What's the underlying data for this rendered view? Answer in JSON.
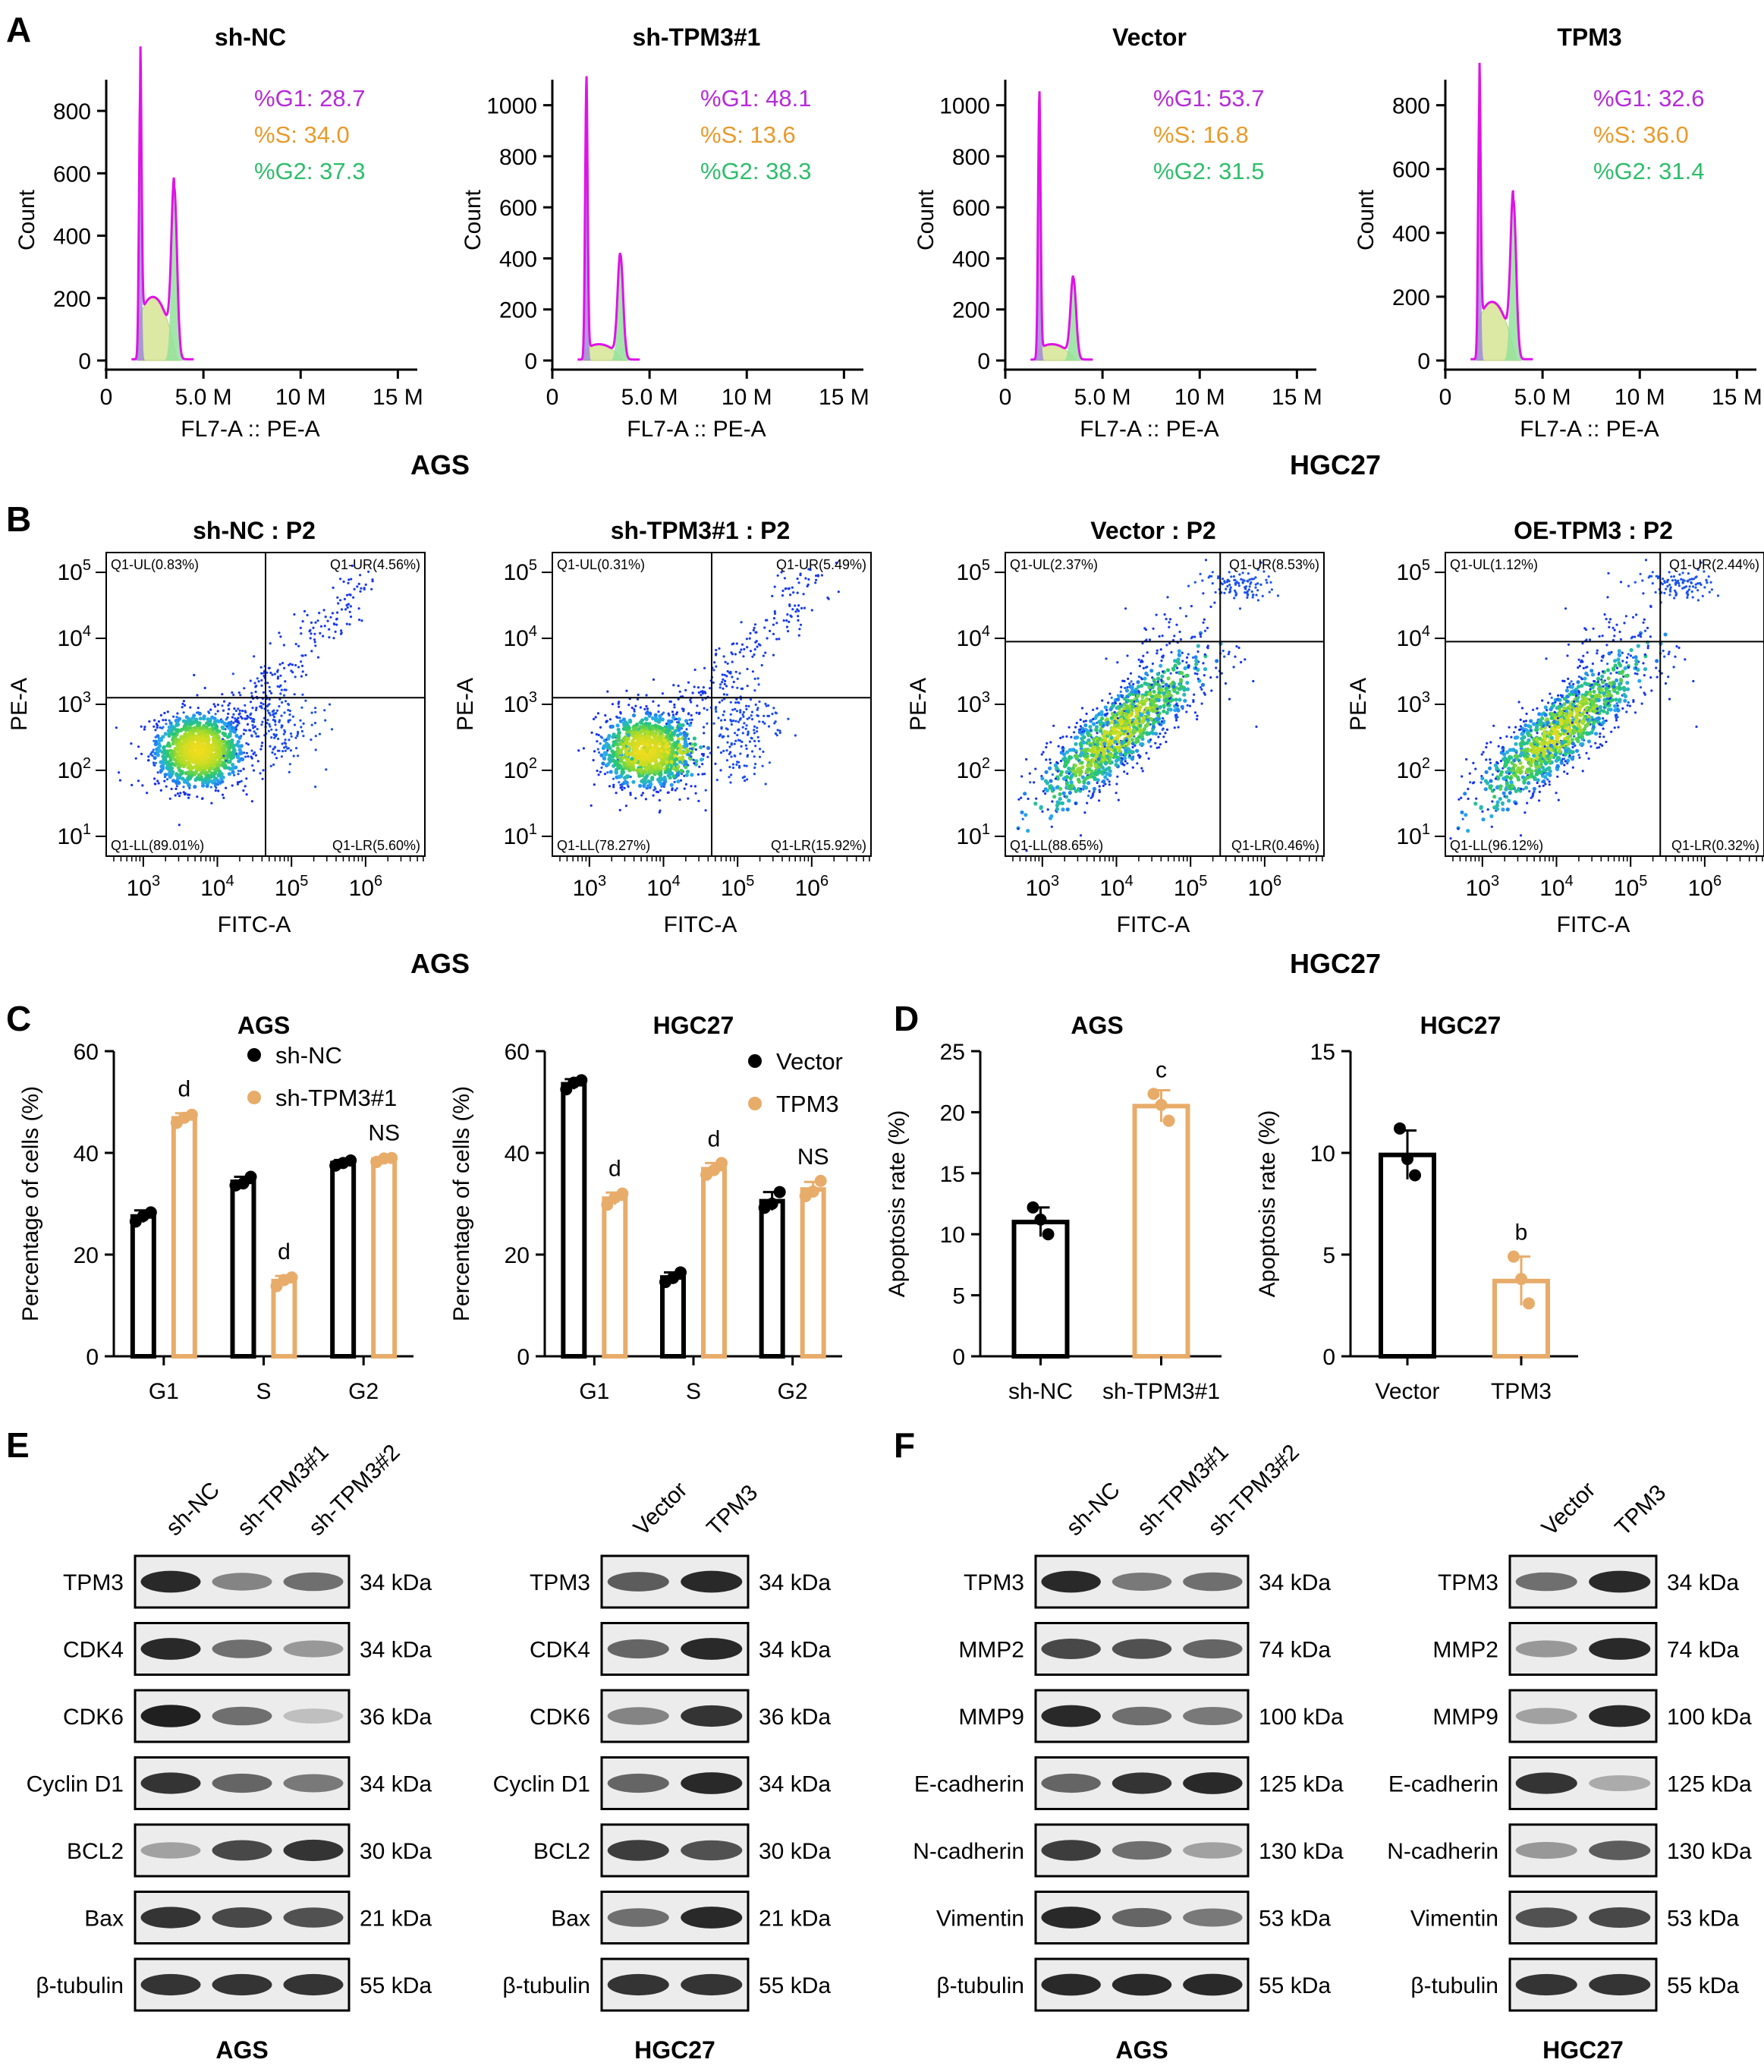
{
  "panel_letters": [
    "A",
    "B",
    "C",
    "D",
    "E",
    "F"
  ],
  "panel_a": {
    "plots": [
      {
        "title": "sh-NC",
        "yticks": [
          "0",
          "200",
          "400",
          "600",
          "800"
        ],
        "ymax": 900,
        "g1": "%G1: 28.7",
        "s": "%S: 34.0",
        "g2": "%G2: 37.3",
        "peak1": 870,
        "peak2": 550,
        "shoulder": 200
      },
      {
        "title": "sh-TPM3#1",
        "yticks": [
          "0",
          "200",
          "400",
          "600",
          "800",
          "1000"
        ],
        "ymax": 1100,
        "g1": "%G1: 48.1",
        "s": "%S: 13.6",
        "g2": "%G2: 38.3",
        "peak1": 1080,
        "peak2": 410,
        "shoulder": 60
      },
      {
        "title": "Vector",
        "yticks": [
          "0",
          "200",
          "400",
          "600",
          "800",
          "1000"
        ],
        "ymax": 1100,
        "g1": "%G1: 53.7",
        "s": "%S: 16.8",
        "g2": "%G2: 31.5",
        "peak1": 1020,
        "peak2": 320,
        "shoulder": 60
      },
      {
        "title": "TPM3",
        "yticks": [
          "0",
          "200",
          "400",
          "600",
          "800"
        ],
        "ymax": 880,
        "g1": "%G1: 32.6",
        "s": "%S: 36.0",
        "g2": "%G2: 31.4",
        "peak1": 810,
        "peak2": 500,
        "shoulder": 180
      }
    ],
    "xticks": [
      "0",
      "5.0 M",
      "10 M",
      "15 M"
    ],
    "xlabel": "FL7-A :: PE-A",
    "ylabel": "Count",
    "group_labels": [
      "AGS",
      "HGC27"
    ]
  },
  "panel_b": {
    "plots": [
      {
        "title": "sh-NC : P2",
        "ul": "Q1-UL(0.83%)",
        "ur": "Q1-UR(4.56%)",
        "ll": "Q1-LL(89.01%)",
        "lr": "Q1-LR(5.60%)",
        "gate_x": 4.65,
        "gate_y": 3.1,
        "style": "ags"
      },
      {
        "title": "sh-TPM3#1 : P2",
        "ul": "Q1-UL(0.31%)",
        "ur": "Q1-UR(5.49%)",
        "ll": "Q1-LL(78.27%)",
        "lr": "Q1-LR(15.92%)",
        "gate_x": 4.65,
        "gate_y": 3.1,
        "style": "ags2"
      },
      {
        "title": "Vector : P2",
        "ul": "Q1-UL(2.37%)",
        "ur": "Q1-UR(8.53%)",
        "ll": "Q1-LL(88.65%)",
        "lr": "Q1-LR(0.46%)",
        "gate_x": 5.4,
        "gate_y": 3.95,
        "style": "hgc"
      },
      {
        "title": "OE-TPM3 : P2",
        "ul": "Q1-UL(1.12%)",
        "ur": "Q1-UR(2.44%)",
        "ll": "Q1-LL(96.12%)",
        "lr": "Q1-LR(0.32%)",
        "gate_x": 5.4,
        "gate_y": 3.95,
        "style": "hgc2"
      }
    ],
    "xlabel": "FITC-A",
    "ylabel": "PE-A",
    "group_labels": [
      "AGS",
      "HGC27"
    ]
  },
  "chart_data": [
    {
      "type": "bar",
      "title": "AGS",
      "categories": [
        "G1",
        "S",
        "G2"
      ],
      "ylabel": "Percentage of cells (%)",
      "ylim": [
        0,
        60
      ],
      "yticks": [
        "0",
        "20",
        "40",
        "60"
      ],
      "series": [
        {
          "name": "sh-NC",
          "values": [
            27.5,
            34.3,
            38.0
          ],
          "error": [
            1.2,
            1.0,
            0.6
          ],
          "points": [
            [
              26.5,
              28.3,
              27.6
            ],
            [
              33.6,
              35.3,
              34.0
            ],
            [
              37.5,
              38.5,
              38.0
            ]
          ]
        },
        {
          "name": "sh-TPM3#1",
          "values": [
            46.8,
            14.8,
            38.7
          ],
          "error": [
            1.0,
            1.0,
            0.5
          ],
          "points": [
            [
              45.9,
              47.5,
              46.9
            ],
            [
              13.8,
              15.5,
              15.0
            ],
            [
              38.2,
              39.0,
              38.9
            ]
          ]
        }
      ],
      "annotations": [
        "d",
        "d",
        "NS"
      ],
      "colors": [
        "#000000",
        "#e8ac6a"
      ]
    },
    {
      "type": "bar",
      "title": "HGC27",
      "categories": [
        "G1",
        "S",
        "G2"
      ],
      "ylabel": "Percentage of cells (%)",
      "ylim": [
        0,
        60
      ],
      "yticks": [
        "0",
        "20",
        "40",
        "60"
      ],
      "series": [
        {
          "name": "Vector",
          "values": [
            53.5,
            15.5,
            30.5
          ],
          "error": [
            1.0,
            1.0,
            1.8
          ],
          "points": [
            [
              52.5,
              54.3,
              53.8
            ],
            [
              14.6,
              16.5,
              15.4
            ],
            [
              29.2,
              32.3,
              30.0
            ]
          ]
        },
        {
          "name": "TPM3",
          "values": [
            31.0,
            36.8,
            32.8
          ],
          "error": [
            1.2,
            1.2,
            1.5
          ],
          "points": [
            [
              29.8,
              32.0,
              31.2
            ],
            [
              35.7,
              38.0,
              36.6
            ],
            [
              31.5,
              34.5,
              32.4
            ]
          ]
        }
      ],
      "annotations": [
        "d",
        "d",
        "NS"
      ],
      "colors": [
        "#000000",
        "#e8ac6a"
      ]
    },
    {
      "type": "bar",
      "title": "AGS",
      "categories": [
        "sh-NC",
        "sh-TPM3#1"
      ],
      "ylabel": "Apoptosis rate (%)",
      "ylim": [
        0,
        25
      ],
      "yticks": [
        "0",
        "5",
        "10",
        "15",
        "20",
        "25"
      ],
      "values": [
        11.0,
        20.5
      ],
      "error": [
        1.2,
        1.3
      ],
      "points": [
        [
          12.2,
          10.0,
          11.2
        ],
        [
          21.5,
          19.3,
          20.6
        ]
      ],
      "annotations": [
        "",
        "c"
      ],
      "colors": [
        "#000000",
        "#e8ac6a"
      ]
    },
    {
      "type": "bar",
      "title": "HGC27",
      "categories": [
        "Vector",
        "TPM3"
      ],
      "ylabel": "Apoptosis rate (%)",
      "ylim": [
        0,
        15
      ],
      "yticks": [
        "0",
        "5",
        "10",
        "15"
      ],
      "values": [
        9.9,
        3.7
      ],
      "error": [
        1.2,
        1.2
      ],
      "points": [
        [
          11.2,
          8.9,
          9.7
        ],
        [
          4.9,
          2.6,
          3.8
        ]
      ],
      "annotations": [
        "",
        "b"
      ],
      "colors": [
        "#000000",
        "#e8ac6a"
      ]
    }
  ],
  "panel_e": {
    "blots": [
      {
        "lanes": [
          "sh-NC",
          "sh-TPM3#1",
          "sh-TPM3#2"
        ],
        "rows": [
          {
            "label": "TPM3",
            "kda": "34 kDa",
            "intensity": [
              0.9,
              0.45,
              0.55
            ]
          },
          {
            "label": "CDK4",
            "kda": "34 kDa",
            "intensity": [
              0.9,
              0.55,
              0.35
            ]
          },
          {
            "label": "CDK6",
            "kda": "36 kDa",
            "intensity": [
              0.95,
              0.55,
              0.15
            ]
          },
          {
            "label": "Cyclin D1",
            "kda": "34 kDa",
            "intensity": [
              0.85,
              0.6,
              0.5
            ]
          },
          {
            "label": "BCL2",
            "kda": "30 kDa",
            "intensity": [
              0.3,
              0.75,
              0.85
            ]
          },
          {
            "label": "Bax",
            "kda": "21 kDa",
            "intensity": [
              0.85,
              0.75,
              0.7
            ]
          },
          {
            "label": "β-tubulin",
            "kda": "55 kDa",
            "intensity": [
              0.85,
              0.85,
              0.85
            ]
          }
        ],
        "footer": "AGS"
      },
      {
        "lanes": [
          "Vector",
          "TPM3"
        ],
        "rows": [
          {
            "label": "TPM3",
            "kda": "34 kDa",
            "intensity": [
              0.65,
              0.9
            ]
          },
          {
            "label": "CDK4",
            "kda": "34 kDa",
            "intensity": [
              0.6,
              0.9
            ]
          },
          {
            "label": "CDK6",
            "kda": "36 kDa",
            "intensity": [
              0.45,
              0.85
            ]
          },
          {
            "label": "Cyclin D1",
            "kda": "34 kDa",
            "intensity": [
              0.6,
              0.9
            ]
          },
          {
            "label": "BCL2",
            "kda": "30 kDa",
            "intensity": [
              0.8,
              0.7
            ]
          },
          {
            "label": "Bax",
            "kda": "21 kDa",
            "intensity": [
              0.55,
              0.9
            ]
          },
          {
            "label": "β-tubulin",
            "kda": "55 kDa",
            "intensity": [
              0.85,
              0.85
            ]
          }
        ],
        "footer": "HGC27"
      }
    ]
  },
  "panel_f": {
    "blots": [
      {
        "lanes": [
          "sh-NC",
          "sh-TPM3#1",
          "sh-TPM3#2"
        ],
        "rows": [
          {
            "label": "TPM3",
            "kda": "34 kDa",
            "intensity": [
              0.9,
              0.5,
              0.55
            ]
          },
          {
            "label": "MMP2",
            "kda": "74 kDa",
            "intensity": [
              0.75,
              0.7,
              0.6
            ]
          },
          {
            "label": "MMP9",
            "kda": "100 kDa",
            "intensity": [
              0.9,
              0.55,
              0.5
            ]
          },
          {
            "label": "E-cadherin",
            "kda": "125 kDa",
            "intensity": [
              0.6,
              0.85,
              0.9
            ]
          },
          {
            "label": "N-cadherin",
            "kda": "130 kDa",
            "intensity": [
              0.8,
              0.55,
              0.3
            ]
          },
          {
            "label": "Vimentin",
            "kda": "53 kDa",
            "intensity": [
              0.9,
              0.6,
              0.5
            ]
          },
          {
            "label": "β-tubulin",
            "kda": "55 kDa",
            "intensity": [
              0.9,
              0.9,
              0.9
            ]
          }
        ],
        "footer": "AGS"
      },
      {
        "lanes": [
          "Vector",
          "TPM3"
        ],
        "rows": [
          {
            "label": "TPM3",
            "kda": "34 kDa",
            "intensity": [
              0.55,
              0.9
            ]
          },
          {
            "label": "MMP2",
            "kda": "74 kDa",
            "intensity": [
              0.35,
              0.9
            ]
          },
          {
            "label": "MMP9",
            "kda": "100 kDa",
            "intensity": [
              0.3,
              0.9
            ]
          },
          {
            "label": "E-cadherin",
            "kda": "125 kDa",
            "intensity": [
              0.85,
              0.25
            ]
          },
          {
            "label": "N-cadherin",
            "kda": "130 kDa",
            "intensity": [
              0.35,
              0.65
            ]
          },
          {
            "label": "Vimentin",
            "kda": "53 kDa",
            "intensity": [
              0.7,
              0.75
            ]
          },
          {
            "label": "β-tubulin",
            "kda": "55 kDa",
            "intensity": [
              0.85,
              0.85
            ]
          }
        ],
        "footer": "HGC27"
      }
    ]
  },
  "colors": {
    "g1": "#b52bd8",
    "s": "#e89a2a",
    "g2": "#2fbd6c",
    "bar_orange": "#e8ac6a",
    "scatter_blue": "#1d35f0"
  }
}
